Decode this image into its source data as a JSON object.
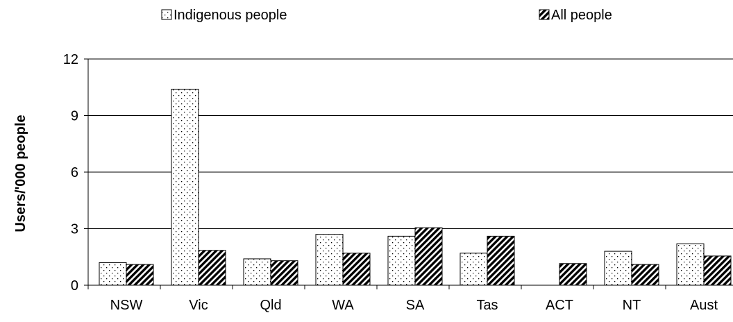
{
  "chart_data": {
    "type": "bar",
    "title": "",
    "xlabel": "",
    "ylabel": "Users/'000 people",
    "ylim": [
      0,
      12
    ],
    "yticks": [
      0,
      3,
      6,
      9,
      12
    ],
    "grid": true,
    "legend_position": "top",
    "categories": [
      "NSW",
      "Vic",
      "Qld",
      "WA",
      "SA",
      "Tas",
      "ACT",
      "NT",
      "Aust"
    ],
    "series": [
      {
        "name": "Indigenous people",
        "pattern": "dots",
        "values": [
          1.2,
          10.4,
          1.4,
          2.7,
          2.6,
          1.7,
          0,
          1.8,
          2.2
        ]
      },
      {
        "name": "All people",
        "pattern": "diagonal-hatch",
        "values": [
          1.1,
          1.85,
          1.3,
          1.7,
          3.05,
          2.6,
          1.15,
          1.1,
          1.55
        ]
      }
    ]
  }
}
